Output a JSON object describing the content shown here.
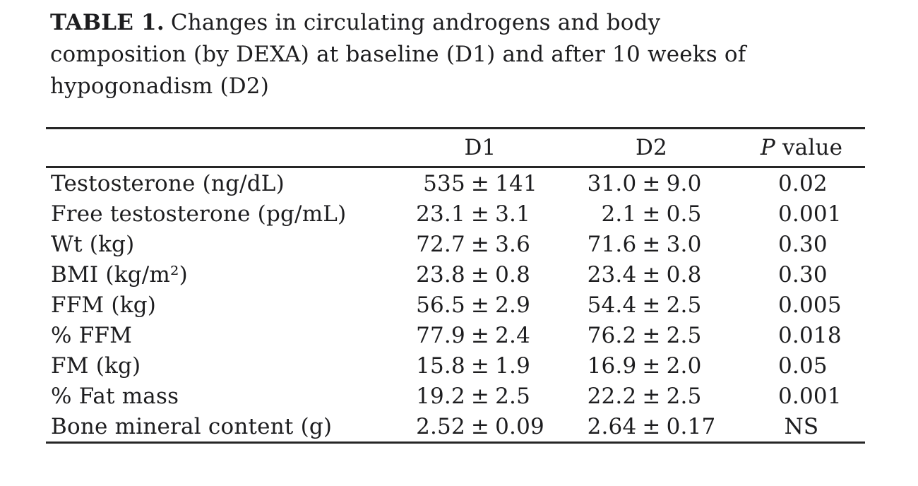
{
  "page": {
    "background": "#ffffff",
    "text_color": "#1d1d1f",
    "rule_color": "#262626"
  },
  "caption": {
    "label": "TABLE 1.",
    "lines": [
      "Changes in circulating androgens and body",
      "composition (by DEXA) at baseline (D1) and after 10 weeks of",
      "hypogonadism (D2)"
    ]
  },
  "table": {
    "p_header": {
      "italic": "P",
      "rest": " value"
    },
    "columns": {
      "label": "",
      "d1": "D1",
      "d2": "D2",
      "p": "P value"
    },
    "rows": [
      {
        "label": "Testosterone (ng/dL)",
        "d1": "535 ± 141",
        "d2": "31.0 ± 9.0",
        "p": "0.02"
      },
      {
        "label": "Free testosterone (pg/mL)",
        "d1": "23.1 ± 3.1",
        "d2": "2.1 ± 0.5",
        "p": "0.001"
      },
      {
        "label": "Wt (kg)",
        "d1": "72.7 ± 3.6",
        "d2": "71.6 ± 3.0",
        "p": "0.30"
      },
      {
        "label": "BMI (kg/m²)",
        "d1": "23.8 ± 0.8",
        "d2": "23.4 ± 0.8",
        "p": "0.30"
      },
      {
        "label": "FFM (kg)",
        "d1": "56.5 ± 2.9",
        "d2": "54.4 ± 2.5",
        "p": "0.005"
      },
      {
        "label": "% FFM",
        "d1": "77.9 ± 2.4",
        "d2": "76.2 ± 2.5",
        "p": "0.018"
      },
      {
        "label": "FM (kg)",
        "d1": "15.8 ± 1.9",
        "d2": "16.9 ± 2.0",
        "p": "0.05"
      },
      {
        "label": "% Fat mass",
        "d1": "19.2 ± 2.5",
        "d2": "22.2 ± 2.5",
        "p": "0.001"
      },
      {
        "label": "Bone mineral content (g)",
        "d1": "2.52 ± 0.09",
        "d2": "2.64 ± 0.17",
        "p": "NS"
      }
    ]
  },
  "chart_data": {
    "type": "table",
    "title": "TABLE 1. Changes in circulating androgens and body composition (by DEXA) at baseline (D1) and after 10 weeks of hypogonadism (D2)",
    "columns": [
      "",
      "D1",
      "D2",
      "P value"
    ],
    "rows": [
      [
        "Testosterone (ng/dL)",
        "535 ± 141",
        "31.0 ± 9.0",
        "0.02"
      ],
      [
        "Free testosterone (pg/mL)",
        "23.1 ± 3.1",
        "2.1 ± 0.5",
        "0.001"
      ],
      [
        "Wt (kg)",
        "72.7 ± 3.6",
        "71.6 ± 3.0",
        "0.30"
      ],
      [
        "BMI (kg/m²)",
        "23.8 ± 0.8",
        "23.4 ± 0.8",
        "0.30"
      ],
      [
        "FFM (kg)",
        "56.5 ± 2.9",
        "54.4 ± 2.5",
        "0.005"
      ],
      [
        "% FFM",
        "77.9 ± 2.4",
        "76.2 ± 2.5",
        "0.018"
      ],
      [
        "FM (kg)",
        "15.8 ± 1.9",
        "16.9 ± 2.0",
        "0.05"
      ],
      [
        "% Fat mass",
        "19.2 ± 2.5",
        "22.2 ± 2.5",
        "0.001"
      ],
      [
        "Bone mineral content (g)",
        "2.52 ± 0.09",
        "2.64 ± 0.17",
        "NS"
      ]
    ]
  }
}
